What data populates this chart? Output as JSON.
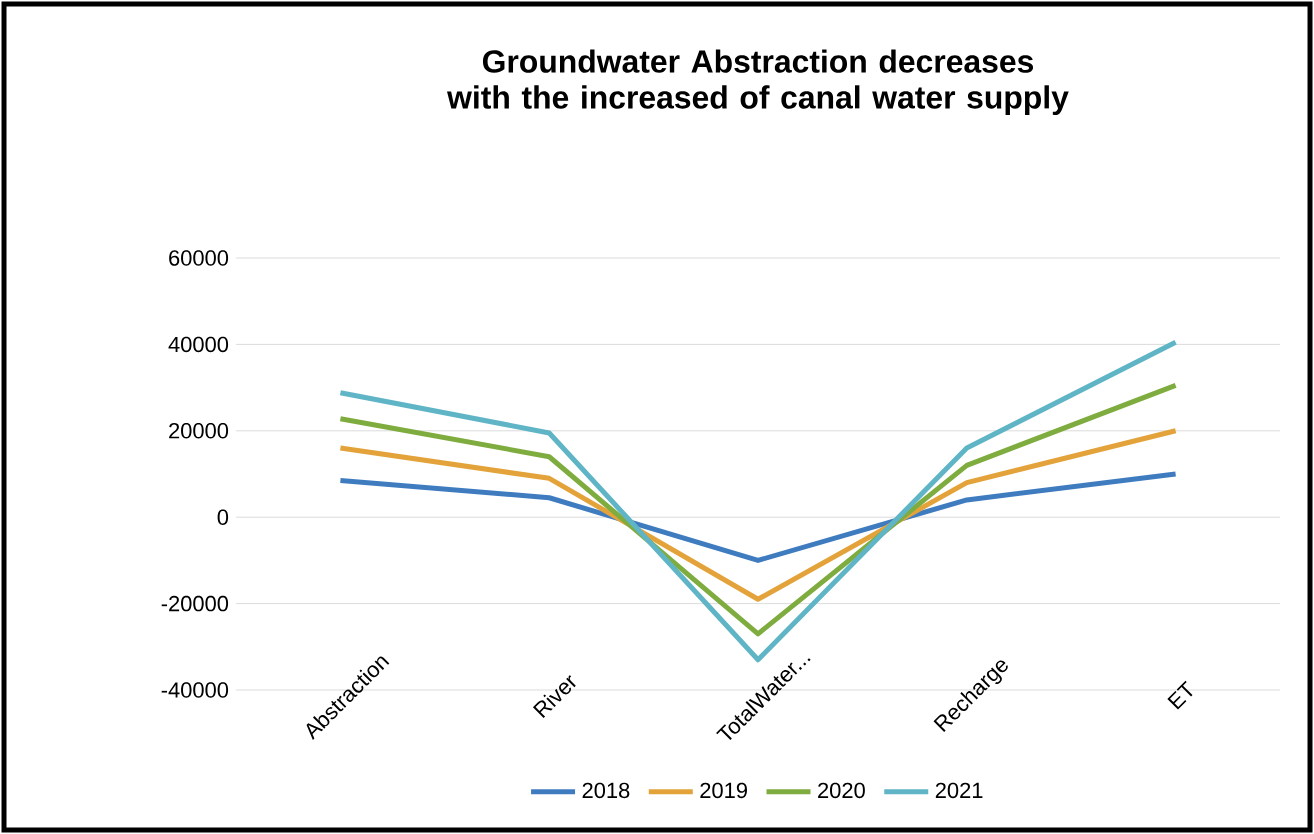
{
  "chart_data": {
    "type": "line",
    "title": "Groundwater Abstraction decreases with the increased of canal water supply",
    "categories": [
      "Abstraction",
      "River",
      "TotalWater...",
      "Recharge",
      "ET"
    ],
    "series": [
      {
        "name": "2018",
        "color": "#3f7cbf",
        "values": [
          8500,
          4500,
          -10000,
          4000,
          10000
        ]
      },
      {
        "name": "2019",
        "color": "#e3a33a",
        "values": [
          16000,
          9000,
          -19000,
          8000,
          20000
        ]
      },
      {
        "name": "2020",
        "color": "#7fac3f",
        "values": [
          22800,
          14000,
          -27000,
          12000,
          30500
        ]
      },
      {
        "name": "2021",
        "color": "#5fb5c6",
        "values": [
          28800,
          19500,
          -33000,
          16000,
          40500
        ]
      }
    ],
    "ylim": [
      -40000,
      60000
    ],
    "yticks": [
      -40000,
      -20000,
      0,
      20000,
      40000,
      60000
    ],
    "grid": "y",
    "legend": "bottom",
    "marker": "none",
    "line_style": "solid"
  }
}
